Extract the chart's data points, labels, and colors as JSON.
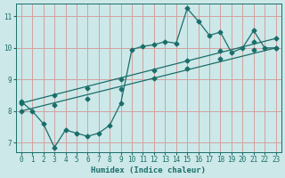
{
  "title": "",
  "xlabel": "Humidex (Indice chaleur)",
  "ylabel": "",
  "bg_color": "#cce8e8",
  "grid_color": "#d4a0a0",
  "line_color": "#1a6e6a",
  "xlim": [
    -0.5,
    23.5
  ],
  "ylim": [
    6.7,
    11.4
  ],
  "xticks": [
    0,
    1,
    2,
    3,
    4,
    5,
    6,
    7,
    8,
    9,
    10,
    11,
    12,
    13,
    14,
    15,
    16,
    17,
    18,
    19,
    20,
    21,
    22,
    23
  ],
  "yticks": [
    7,
    8,
    9,
    10,
    11
  ],
  "line1_x": [
    0,
    1,
    2,
    3,
    4,
    5,
    6,
    7,
    8,
    9,
    10,
    11,
    12,
    13,
    14,
    15,
    16,
    17,
    18,
    19,
    20,
    21,
    22,
    23
  ],
  "line1_y": [
    8.3,
    8.0,
    7.6,
    6.85,
    7.4,
    7.3,
    7.2,
    7.3,
    7.55,
    8.25,
    9.95,
    10.05,
    10.1,
    10.2,
    10.15,
    11.25,
    10.85,
    10.4,
    10.5,
    9.85,
    10.0,
    10.55,
    10.0,
    10.0
  ],
  "line2_x": [
    0,
    23
  ],
  "line2_y": [
    8.0,
    10.0
  ],
  "line3_x": [
    0,
    23
  ],
  "line3_y": [
    8.25,
    10.3
  ],
  "marker_x2": [
    0,
    3,
    6,
    9,
    12,
    15,
    18,
    21,
    23
  ],
  "marker_y2": [
    8.0,
    8.2,
    8.4,
    8.7,
    9.04,
    9.35,
    9.65,
    9.95,
    10.0
  ],
  "marker_x3": [
    0,
    3,
    6,
    9,
    12,
    15,
    18,
    21,
    23
  ],
  "marker_y3": [
    8.25,
    8.5,
    8.74,
    9.0,
    9.3,
    9.6,
    9.9,
    10.2,
    10.3
  ]
}
